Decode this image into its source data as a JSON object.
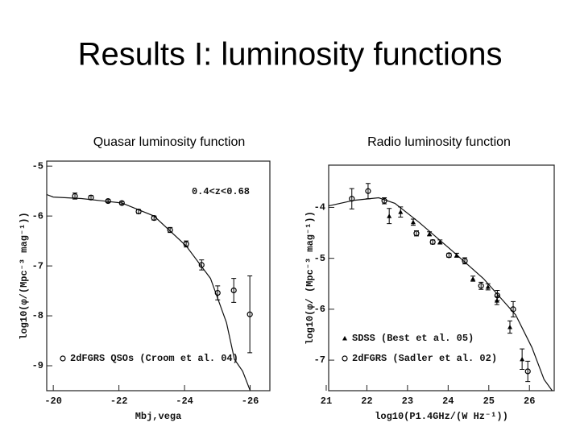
{
  "slide": {
    "title": "Results I: luminosity functions"
  },
  "chart_data": [
    {
      "type": "scatter",
      "title": "Quasar luminosity function",
      "xlabel": "Mbj,vega",
      "ylabel": "log10(φ/(Mpc⁻³ mag⁻¹))",
      "annotation": "0.4<z<0.68",
      "xlim": [
        -19.8,
        -26.6
      ],
      "ylim": [
        -9.5,
        -4.9
      ],
      "xticks": [
        -20,
        -22,
        -24,
        -26
      ],
      "yticks": [
        -5,
        -6,
        -7,
        -8,
        -9
      ],
      "series": [
        {
          "name": "2dFGRS QSOs (Croom et al. 04)",
          "marker": "circle",
          "color": "#000000",
          "x": [
            -20.66,
            -21.15,
            -21.67,
            -22.09,
            -22.6,
            -23.07,
            -23.56,
            -24.05,
            -24.52,
            -25.01,
            -25.5,
            -25.99
          ],
          "values": [
            -5.6,
            -5.63,
            -5.7,
            -5.74,
            -5.91,
            -6.04,
            -6.28,
            -6.56,
            -6.98,
            -7.54,
            -7.49,
            -7.97
          ],
          "errors": [
            0.06,
            0.04,
            0.03,
            0.03,
            0.04,
            0.04,
            0.05,
            0.06,
            0.1,
            0.14,
            0.24,
            0.77
          ]
        }
      ],
      "curve": {
        "x": [
          -19.8,
          -20,
          -20.86,
          -22.09,
          -23.07,
          -24.05,
          -24.79,
          -25.28,
          -25.52,
          -25.77,
          -26.0
        ],
        "values": [
          -5.57,
          -5.62,
          -5.65,
          -5.74,
          -6.0,
          -6.6,
          -7.25,
          -8.14,
          -8.87,
          -9.11,
          -9.5
        ]
      }
    },
    {
      "type": "scatter",
      "title": "Radio luminosity function",
      "xlabel": "log10(P1.4GHz/(W Hz⁻¹))",
      "ylabel": "log10(φ/ (Mpc⁻³ mag⁻¹))",
      "xlim": [
        21.06,
        26.61
      ],
      "ylim": [
        -7.6,
        -3.17
      ],
      "xticks": [
        21,
        22,
        23,
        24,
        25,
        26
      ],
      "yticks": [
        -4,
        -5,
        -6,
        -7
      ],
      "series": [
        {
          "name": "SDSS (Best et al. 05)",
          "marker": "triangle",
          "color": "#000000",
          "x": [
            22.55,
            22.83,
            23.14,
            23.54,
            23.8,
            24.21,
            24.61,
            24.98,
            25.2,
            25.52,
            25.82
          ],
          "values": [
            -4.17,
            -4.09,
            -4.29,
            -4.52,
            -4.68,
            -4.94,
            -5.4,
            -5.56,
            -5.83,
            -6.35,
            -6.98
          ],
          "errors": [
            0.15,
            0.1,
            0.06,
            0.04,
            0.04,
            0.04,
            0.05,
            0.06,
            0.08,
            0.12,
            0.2
          ]
        },
        {
          "name": "2dFGRS (Sadler et al. 02)",
          "marker": "circle",
          "color": "#000000",
          "x": [
            21.63,
            22.03,
            22.43,
            23.22,
            23.62,
            24.02,
            24.41,
            24.81,
            25.21,
            25.6,
            25.96
          ],
          "values": [
            -3.83,
            -3.68,
            -3.87,
            -4.51,
            -4.68,
            -4.94,
            -5.05,
            -5.54,
            -5.73,
            -6.0,
            -7.22
          ],
          "errors": [
            0.2,
            0.15,
            0.06,
            0.05,
            0.04,
            0.04,
            0.06,
            0.07,
            0.1,
            0.15,
            0.2
          ]
        }
      ],
      "curve": {
        "x": [
          21.06,
          21.69,
          22.29,
          22.69,
          23.28,
          24.08,
          24.87,
          25.66,
          26.06,
          26.36,
          26.56
        ],
        "values": [
          -3.97,
          -3.86,
          -3.81,
          -3.92,
          -4.29,
          -4.84,
          -5.4,
          -6.11,
          -6.75,
          -7.38,
          -7.6
        ]
      }
    }
  ]
}
